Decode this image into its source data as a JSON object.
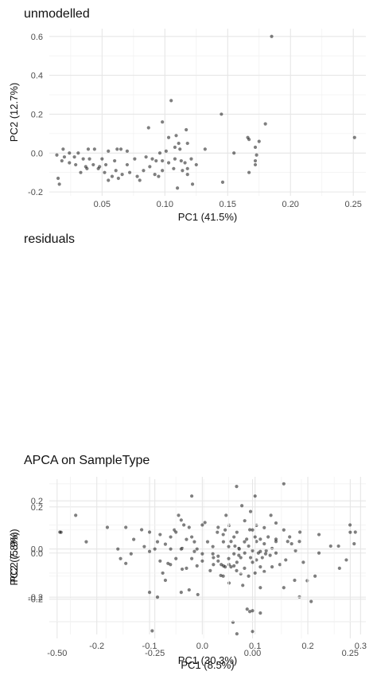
{
  "chart_data": [
    {
      "type": "scatter",
      "title": "unmodelled",
      "xlabel": "PC1 (41.5%)",
      "ylabel": "PC2 (12.7%)",
      "xlim": [
        0.008,
        0.26
      ],
      "ylim": [
        -0.22,
        0.64
      ],
      "xticks": [
        0.05,
        0.1,
        0.15,
        0.2,
        0.25
      ],
      "xtick_labels": [
        "0.05",
        "0.10",
        "0.15",
        "0.20",
        "0.25"
      ],
      "yticks": [
        -0.2,
        0.0,
        0.2,
        0.4,
        0.6
      ],
      "ytick_labels": [
        "-0.2",
        "0.0",
        "0.2",
        "0.4",
        "0.6"
      ],
      "grid": true,
      "point_color": "#000000",
      "points": [
        [
          0.185,
          0.6
        ],
        [
          0.105,
          0.27
        ],
        [
          0.145,
          0.2
        ],
        [
          0.098,
          0.16
        ],
        [
          0.18,
          0.15
        ],
        [
          0.087,
          0.13
        ],
        [
          0.117,
          0.12
        ],
        [
          0.109,
          0.09
        ],
        [
          0.103,
          0.08
        ],
        [
          0.166,
          0.08
        ],
        [
          0.167,
          0.07
        ],
        [
          0.251,
          0.08
        ],
        [
          0.175,
          0.06
        ],
        [
          0.111,
          0.05
        ],
        [
          0.118,
          0.05
        ],
        [
          0.172,
          0.03
        ],
        [
          0.108,
          0.03
        ],
        [
          0.112,
          0.02
        ],
        [
          0.132,
          0.02
        ],
        [
          0.101,
          0.01
        ],
        [
          0.096,
          0.0
        ],
        [
          0.155,
          0.0
        ],
        [
          0.173,
          -0.01
        ],
        [
          0.07,
          0.01
        ],
        [
          0.065,
          0.02
        ],
        [
          0.039,
          0.02
        ],
        [
          0.044,
          0.02
        ],
        [
          0.055,
          0.01
        ],
        [
          0.062,
          0.02
        ],
        [
          0.031,
          0.0
        ],
        [
          0.024,
          0.0
        ],
        [
          0.019,
          0.02
        ],
        [
          0.014,
          -0.01
        ],
        [
          0.02,
          -0.02
        ],
        [
          0.028,
          -0.02
        ],
        [
          0.035,
          -0.03
        ],
        [
          0.04,
          -0.03
        ],
        [
          0.05,
          -0.03
        ],
        [
          0.06,
          -0.04
        ],
        [
          0.076,
          -0.03
        ],
        [
          0.085,
          -0.02
        ],
        [
          0.09,
          -0.03
        ],
        [
          0.093,
          -0.04
        ],
        [
          0.098,
          -0.04
        ],
        [
          0.103,
          -0.05
        ],
        [
          0.108,
          -0.03
        ],
        [
          0.113,
          -0.04
        ],
        [
          0.116,
          -0.05
        ],
        [
          0.121,
          -0.03
        ],
        [
          0.125,
          -0.06
        ],
        [
          0.118,
          -0.08
        ],
        [
          0.114,
          -0.09
        ],
        [
          0.107,
          -0.08
        ],
        [
          0.098,
          -0.09
        ],
        [
          0.092,
          -0.11
        ],
        [
          0.083,
          -0.09
        ],
        [
          0.078,
          -0.12
        ],
        [
          0.072,
          -0.1
        ],
        [
          0.066,
          -0.11
        ],
        [
          0.061,
          -0.09
        ],
        [
          0.058,
          -0.12
        ],
        [
          0.052,
          -0.1
        ],
        [
          0.047,
          -0.08
        ],
        [
          0.043,
          -0.06
        ],
        [
          0.037,
          -0.07
        ],
        [
          0.033,
          -0.1
        ],
        [
          0.029,
          -0.06
        ],
        [
          0.024,
          -0.05
        ],
        [
          0.018,
          -0.04
        ],
        [
          0.015,
          -0.13
        ],
        [
          0.016,
          -0.16
        ],
        [
          0.055,
          -0.14
        ],
        [
          0.063,
          -0.13
        ],
        [
          0.08,
          -0.14
        ],
        [
          0.095,
          -0.12
        ],
        [
          0.11,
          -0.18
        ],
        [
          0.122,
          -0.16
        ],
        [
          0.146,
          -0.15
        ],
        [
          0.172,
          -0.04
        ],
        [
          0.172,
          -0.06
        ],
        [
          0.167,
          -0.1
        ],
        [
          0.118,
          -0.11
        ],
        [
          0.088,
          -0.07
        ],
        [
          0.07,
          -0.06
        ],
        [
          0.053,
          -0.06
        ],
        [
          0.048,
          -0.07
        ],
        [
          0.038,
          -0.08
        ]
      ]
    },
    {
      "type": "scatter",
      "title": "residuals",
      "xlabel": "PC1 (8.5%)",
      "ylabel": "PC2 (7.8%)",
      "xlim": [
        -0.52,
        0.29
      ],
      "ylim": [
        -0.37,
        0.32
      ],
      "xticks": [
        -0.5,
        -0.25,
        0.0,
        0.25
      ],
      "xtick_labels": [
        "-0.50",
        "-0.25",
        "0.00",
        "0.25"
      ],
      "yticks": [
        -0.2,
        0.0,
        0.2
      ],
      "ytick_labels": [
        "-0.2",
        "0.0",
        "0.2"
      ],
      "grid": true,
      "point_color": "#000000",
      "points": [
        [
          -0.49,
          0.09
        ],
        [
          0.08,
          0.3
        ],
        [
          -0.2,
          0.1
        ],
        [
          -0.18,
          0.02
        ],
        [
          -0.21,
          -0.05
        ],
        [
          -0.18,
          -0.07
        ],
        [
          -0.14,
          -0.18
        ],
        [
          -0.1,
          -0.02
        ],
        [
          -0.075,
          0.08
        ],
        [
          -0.07,
          0.1
        ],
        [
          -0.055,
          0.05
        ],
        [
          -0.045,
          0.03
        ],
        [
          -0.035,
          0.02
        ],
        [
          -0.02,
          0.0
        ],
        [
          -0.01,
          0.03
        ],
        [
          0.0,
          0.01
        ],
        [
          0.01,
          0.05
        ],
        [
          0.02,
          0.06
        ],
        [
          0.03,
          0.04
        ],
        [
          0.04,
          0.07
        ],
        [
          0.05,
          0.02
        ],
        [
          0.06,
          0.0
        ],
        [
          -0.03,
          -0.02
        ],
        [
          -0.04,
          -0.04
        ],
        [
          -0.06,
          -0.05
        ],
        [
          -0.055,
          -0.06
        ],
        [
          -0.03,
          -0.09
        ],
        [
          -0.01,
          -0.1
        ],
        [
          0.0,
          -0.04
        ],
        [
          0.01,
          -0.03
        ],
        [
          0.02,
          -0.06
        ],
        [
          0.03,
          -0.08
        ],
        [
          0.05,
          -0.06
        ],
        [
          0.07,
          -0.05
        ],
        [
          0.085,
          -0.03
        ],
        [
          0.08,
          0.1
        ],
        [
          0.095,
          0.07
        ],
        [
          0.11,
          0.01
        ],
        [
          0.13,
          -0.04
        ],
        [
          0.14,
          -0.12
        ],
        [
          0.16,
          -0.1
        ],
        [
          0.17,
          0.0
        ],
        [
          0.17,
          0.08
        ],
        [
          0.2,
          0.03
        ],
        [
          0.22,
          0.03
        ],
        [
          0.24,
          -0.03
        ],
        [
          0.26,
          0.04
        ],
        [
          0.25,
          0.09
        ],
        [
          -0.005,
          0.18
        ],
        [
          0.01,
          0.12
        ],
        [
          0.03,
          0.11
        ],
        [
          0.06,
          0.13
        ],
        [
          0.0,
          0.1
        ],
        [
          -0.02,
          0.14
        ],
        [
          -0.04,
          0.09
        ],
        [
          -0.06,
          0.12
        ],
        [
          -0.09,
          0.09
        ],
        [
          -0.1,
          -0.05
        ],
        [
          -0.08,
          -0.05
        ],
        [
          -0.07,
          -0.06
        ],
        [
          -0.075,
          -0.1
        ],
        [
          -0.06,
          -0.13
        ],
        [
          -0.025,
          -0.14
        ],
        [
          0.02,
          -0.15
        ],
        [
          0.08,
          -0.15
        ],
        [
          0.12,
          -0.19
        ],
        [
          0.15,
          -0.21
        ],
        [
          0.0,
          -0.25
        ],
        [
          0.02,
          -0.26
        ],
        [
          -0.05,
          -0.3
        ],
        [
          -0.04,
          -0.35
        ],
        [
          0.0,
          -0.34
        ],
        [
          -0.005,
          -0.02
        ],
        [
          0.015,
          0.0
        ],
        [
          0.035,
          0.01
        ],
        [
          0.045,
          -0.01
        ],
        [
          -0.015,
          0.06
        ],
        [
          -0.035,
          -0.01
        ],
        [
          0.06,
          0.05
        ],
        [
          0.09,
          0.05
        ],
        [
          0.1,
          0.04
        ],
        [
          0.12,
          0.05
        ],
        [
          0.025,
          -0.02
        ],
        [
          0.06,
          0.06
        ]
      ]
    },
    {
      "type": "scatter",
      "title": "APCA on SampleType",
      "xlabel": "PC1 (30.3%)",
      "ylabel": "PC2 (5.9%)",
      "xlim": [
        -0.29,
        0.31
      ],
      "ylim": [
        -0.355,
        0.3
      ],
      "xticks": [
        -0.2,
        -0.1,
        0.0,
        0.1,
        0.2,
        0.3
      ],
      "xtick_labels": [
        "-0.2",
        "-0.1",
        "0.0",
        "0.1",
        "0.2",
        "0.3"
      ],
      "yticks": [
        -0.2,
        0.0,
        0.2
      ],
      "ytick_labels": [
        "-0.2",
        "0.0",
        "0.2"
      ],
      "grid": true,
      "point_color": "#000000",
      "points": [
        [
          -0.24,
          0.14
        ],
        [
          -0.27,
          0.07
        ],
        [
          -0.22,
          0.03
        ],
        [
          -0.18,
          0.09
        ],
        [
          -0.145,
          0.09
        ],
        [
          -0.16,
          0.0
        ],
        [
          -0.155,
          -0.04
        ],
        [
          -0.145,
          -0.06
        ],
        [
          -0.135,
          -0.02
        ],
        [
          -0.11,
          0.01
        ],
        [
          -0.115,
          0.08
        ],
        [
          -0.1,
          0.07
        ],
        [
          -0.085,
          0.03
        ],
        [
          -0.08,
          -0.05
        ],
        [
          -0.075,
          -0.1
        ],
        [
          -0.07,
          -0.13
        ],
        [
          -0.06,
          0.0
        ],
        [
          -0.05,
          0.07
        ],
        [
          -0.045,
          0.14
        ],
        [
          -0.04,
          0.12
        ],
        [
          -0.035,
          0.1
        ],
        [
          -0.025,
          0.09
        ],
        [
          -0.02,
          0.05
        ],
        [
          -0.015,
          0.03
        ],
        [
          -0.01,
          0.0
        ],
        [
          0.0,
          0.1
        ],
        [
          0.005,
          0.11
        ],
        [
          0.01,
          0.03
        ],
        [
          0.02,
          -0.02
        ],
        [
          0.03,
          -0.05
        ],
        [
          0.04,
          -0.07
        ],
        [
          0.05,
          -0.04
        ],
        [
          0.06,
          -0.02
        ],
        [
          0.07,
          0.0
        ],
        [
          0.08,
          0.03
        ],
        [
          0.09,
          0.08
        ],
        [
          0.1,
          0.05
        ],
        [
          0.11,
          -0.01
        ],
        [
          0.12,
          -0.02
        ],
        [
          0.13,
          0.14
        ],
        [
          0.1,
          0.22
        ],
        [
          0.065,
          0.26
        ],
        [
          0.075,
          0.18
        ],
        [
          0.045,
          0.14
        ],
        [
          0.03,
          0.09
        ],
        [
          -0.02,
          0.22
        ],
        [
          -0.09,
          0.0
        ],
        [
          -0.1,
          -0.01
        ],
        [
          -0.065,
          -0.06
        ],
        [
          -0.05,
          -0.04
        ],
        [
          -0.03,
          -0.08
        ],
        [
          -0.01,
          -0.07
        ],
        [
          0.0,
          -0.05
        ],
        [
          0.015,
          -0.09
        ],
        [
          0.035,
          -0.11
        ],
        [
          0.065,
          -0.09
        ],
        [
          0.06,
          -0.07
        ],
        [
          0.08,
          -0.08
        ],
        [
          0.1,
          -0.1
        ],
        [
          0.085,
          -0.25
        ],
        [
          0.09,
          -0.26
        ],
        [
          -0.025,
          -0.17
        ],
        [
          -0.04,
          -0.18
        ],
        [
          -0.1,
          -0.18
        ],
        [
          -0.085,
          -0.2
        ],
        [
          -0.095,
          -0.34
        ],
        [
          0.185,
          0.07
        ],
        [
          0.175,
          -0.13
        ],
        [
          0.26,
          -0.08
        ],
        [
          0.28,
          0.1
        ],
        [
          0.29,
          0.07
        ],
        [
          -0.13,
          0.04
        ],
        [
          -0.07,
          0.02
        ],
        [
          -0.04,
          0.0
        ],
        [
          -0.06,
          0.05
        ],
        [
          -0.03,
          0.04
        ],
        [
          0.02,
          0.01
        ],
        [
          0.04,
          0.03
        ],
        [
          0.06,
          0.05
        ],
        [
          -0.015,
          -0.01
        ],
        [
          0.0,
          -0.02
        ],
        [
          -0.02,
          -0.04
        ],
        [
          0.03,
          -0.03
        ],
        [
          0.05,
          0.01
        ],
        [
          -0.08,
          0.06
        ]
      ]
    }
  ]
}
